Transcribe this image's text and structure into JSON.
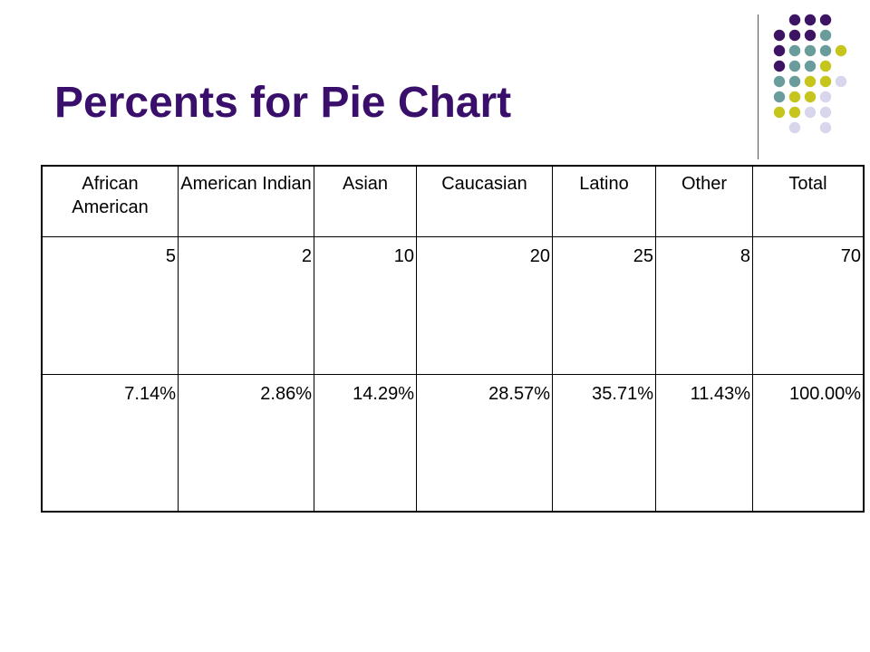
{
  "slide": {
    "title": "Percents for Pie Chart"
  },
  "decoration": {
    "icon": "dot-grid-logo",
    "colors": {
      "purple": "#3d1463",
      "teal": "#6a9c9c",
      "olive": "#c6c51e",
      "lavender": "#d7d6ec"
    }
  },
  "table": {
    "headers": [
      "African American",
      "American Indian",
      "Asian",
      "Caucasian",
      "Latino",
      "Other",
      "Total"
    ],
    "counts": [
      "5",
      "2",
      "10",
      "20",
      "25",
      "8",
      "70"
    ],
    "percents": [
      "7.14%",
      "2.86%",
      "14.29%",
      "28.57%",
      "35.71%",
      "11.43%",
      "100.00%"
    ]
  },
  "colors": {
    "title": "#3a0f6b",
    "text": "#000000",
    "border": "#000000",
    "background": "#ffffff"
  }
}
